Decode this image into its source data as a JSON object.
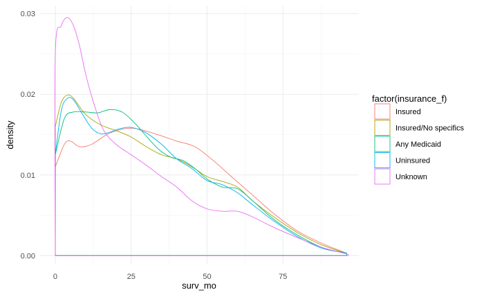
{
  "chart_data": {
    "type": "line",
    "xlabel": "surv_mo",
    "ylabel": "density",
    "xlim": [
      -5,
      100
    ],
    "ylim": [
      -0.001,
      0.031
    ],
    "x_ticks": [
      0,
      25,
      50,
      75
    ],
    "y_ticks": [
      0.0,
      0.01,
      0.02,
      0.03
    ],
    "x_tick_labels": [
      "0",
      "25",
      "50",
      "75"
    ],
    "y_tick_labels": [
      "0.00",
      "0.01",
      "0.02",
      "0.03"
    ],
    "grid": true,
    "legend": {
      "title": "factor(insurance_f)",
      "position": "right"
    },
    "series": [
      {
        "name": "Insured",
        "color": "#F8766D",
        "x": [
          0,
          3,
          5,
          8,
          12,
          18,
          25,
          32,
          40,
          46,
          52,
          58,
          65,
          72,
          80,
          88,
          96
        ],
        "y": [
          0.011,
          0.0138,
          0.0142,
          0.0135,
          0.0138,
          0.0152,
          0.0158,
          0.0152,
          0.0142,
          0.0135,
          0.0118,
          0.0098,
          0.0075,
          0.0052,
          0.003,
          0.0015,
          0.0003
        ]
      },
      {
        "name": "Insured/No specifics",
        "color": "#A3A500",
        "x": [
          0,
          2,
          4,
          6,
          10,
          15,
          20,
          25,
          30,
          35,
          40,
          45,
          50,
          55,
          60,
          65,
          72,
          80,
          88,
          96
        ],
        "y": [
          0.016,
          0.019,
          0.0199,
          0.0195,
          0.0175,
          0.0162,
          0.0155,
          0.0147,
          0.0135,
          0.0125,
          0.012,
          0.011,
          0.0098,
          0.0092,
          0.0085,
          0.0068,
          0.0048,
          0.0028,
          0.0013,
          0.0003
        ]
      },
      {
        "name": "Any Medicaid",
        "color": "#00BF7D",
        "x": [
          0,
          3,
          6,
          10,
          14,
          18,
          22,
          26,
          30,
          34,
          38,
          42,
          46,
          50,
          55,
          60,
          65,
          72,
          80,
          88,
          96
        ],
        "y": [
          0.0125,
          0.017,
          0.0178,
          0.0178,
          0.0177,
          0.0181,
          0.0178,
          0.0165,
          0.0148,
          0.0132,
          0.0122,
          0.0118,
          0.0108,
          0.0095,
          0.0085,
          0.0083,
          0.0068,
          0.0045,
          0.0025,
          0.001,
          0.0003
        ]
      },
      {
        "name": "Uninsured",
        "color": "#00B0F6",
        "x": [
          0,
          2,
          4,
          6,
          9,
          12,
          15,
          18,
          21,
          25,
          30,
          35,
          40,
          45,
          50,
          55,
          60,
          65,
          72,
          80,
          88,
          96
        ],
        "y": [
          0.0125,
          0.018,
          0.0195,
          0.0193,
          0.0175,
          0.0158,
          0.0151,
          0.0153,
          0.0157,
          0.0159,
          0.0152,
          0.0138,
          0.012,
          0.0108,
          0.0093,
          0.0088,
          0.0078,
          0.0063,
          0.0043,
          0.0023,
          0.0009,
          0.0003
        ]
      },
      {
        "name": "Unknown",
        "color": "#E76BF3",
        "x": [
          0,
          0.01,
          2,
          4,
          6,
          8,
          10,
          13,
          16,
          20,
          25,
          30,
          35,
          40,
          45,
          50,
          55,
          60,
          65,
          72,
          80,
          88,
          96,
          96.01
        ],
        "y": [
          0.0,
          0.025,
          0.0285,
          0.0295,
          0.0285,
          0.026,
          0.0225,
          0.0185,
          0.0155,
          0.0138,
          0.0125,
          0.0112,
          0.0098,
          0.0085,
          0.0068,
          0.0058,
          0.0055,
          0.0055,
          0.0048,
          0.0035,
          0.0022,
          0.001,
          0.0002,
          0.0
        ]
      }
    ]
  }
}
